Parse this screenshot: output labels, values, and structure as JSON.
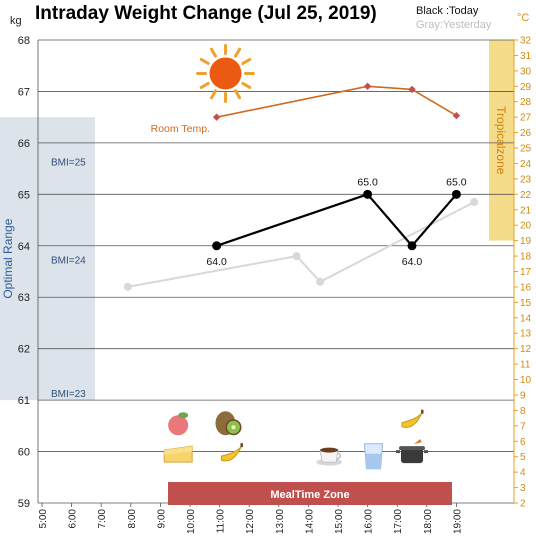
{
  "header": {
    "title": "Intraday Weight Change (Jul 25, 2019)",
    "legend_today": "Black :Today",
    "legend_yesterday": "Gray:Yesterday",
    "unit_left": "kg",
    "unit_right": "°C"
  },
  "bands": {
    "optimal_label": "Optimal Range",
    "tropical_label": "Tropicalzone",
    "bmi_labels": [
      {
        "text": "BMI=25",
        "kg": 65.5
      },
      {
        "text": "BMI=24",
        "kg": 63.6
      },
      {
        "text": "BMI=23",
        "kg": 61.0
      }
    ],
    "optimal_range_kg": [
      61.0,
      66.5
    ],
    "tropical_range_c": [
      19.0,
      32.0
    ],
    "meal_zone_label": "MealTime Zone",
    "meal_zone_hours": [
      9.0,
      19.0
    ]
  },
  "colors": {
    "today": "#000000",
    "yesterday": "#d8d8d8",
    "room_temp": "#d2691e",
    "optimal_band": "#dce3ea",
    "tropical_band": "#f5dc8a",
    "meal_zone": "#c0504d",
    "right_axis": "#e8a020"
  },
  "icons": [
    {
      "name": "sun-icon",
      "hour": 11.2,
      "kg": 67.35
    },
    {
      "name": "peach-icon",
      "hour": 9.6,
      "kg": 60.55
    },
    {
      "name": "kiwi-icon",
      "hour": 11.3,
      "kg": 60.55
    },
    {
      "name": "banana-icon",
      "hour": 17.5,
      "kg": 60.6
    },
    {
      "name": "cheese-cake-icon",
      "hour": 9.6,
      "kg": 59.95
    },
    {
      "name": "banana-icon",
      "hour": 11.4,
      "kg": 59.95
    },
    {
      "name": "coffee-icon",
      "hour": 14.7,
      "kg": 59.95
    },
    {
      "name": "water-glass-icon",
      "hour": 16.2,
      "kg": 59.9
    },
    {
      "name": "cooking-pot-icon",
      "hour": 17.5,
      "kg": 59.95
    }
  ],
  "chart_data": {
    "type": "line",
    "title": "Intraday Weight Change (Jul 25, 2019)",
    "x_tick_labels": [
      "5:00",
      "6:00",
      "7:00",
      "8:00",
      "9:00",
      "10:00",
      "11:00",
      "12:00",
      "13:00",
      "14:00",
      "15:00",
      "16:00",
      "17:00",
      "18:00",
      "19:00"
    ],
    "x_tick_hours": [
      5,
      6,
      7,
      8,
      9,
      10,
      11,
      12,
      13,
      14,
      15,
      16,
      17,
      18,
      19
    ],
    "xlim_hours": [
      5,
      19.6
    ],
    "ylim_kg": [
      59,
      68
    ],
    "y_ticks_kg": [
      59,
      60,
      61,
      62,
      63,
      64,
      65,
      66,
      67,
      68
    ],
    "ylim_right_c": [
      2,
      32
    ],
    "y_ticks_right_c": [
      2,
      3,
      4,
      5,
      6,
      7,
      8,
      9,
      10,
      11,
      12,
      13,
      14,
      15,
      16,
      17,
      18,
      19,
      20,
      21,
      22,
      23,
      24,
      25,
      26,
      27,
      28,
      29,
      30,
      31,
      32
    ],
    "grid": true,
    "series": [
      {
        "name": "Black :Today",
        "axis": "left",
        "points": [
          {
            "hour": 10.9,
            "value": 64.0,
            "label": "64.0"
          },
          {
            "hour": 16.0,
            "value": 65.0,
            "label": "65.0"
          },
          {
            "hour": 17.5,
            "value": 64.0,
            "label": "64.0"
          },
          {
            "hour": 19.0,
            "value": 65.0,
            "label": "65.0"
          }
        ]
      },
      {
        "name": "Gray:Yesterday",
        "axis": "left",
        "points": [
          {
            "hour": 7.9,
            "value": 63.2
          },
          {
            "hour": 13.6,
            "value": 63.8
          },
          {
            "hour": 14.4,
            "value": 63.3
          },
          {
            "hour": 19.6,
            "value": 64.85
          }
        ]
      },
      {
        "name": "Room Temp.",
        "axis": "right",
        "points": [
          {
            "hour": 10.9,
            "value": 27.0
          },
          {
            "hour": 16.0,
            "value": 29.0
          },
          {
            "hour": 17.5,
            "value": 28.8
          },
          {
            "hour": 19.0,
            "value": 27.1
          }
        ]
      }
    ]
  }
}
